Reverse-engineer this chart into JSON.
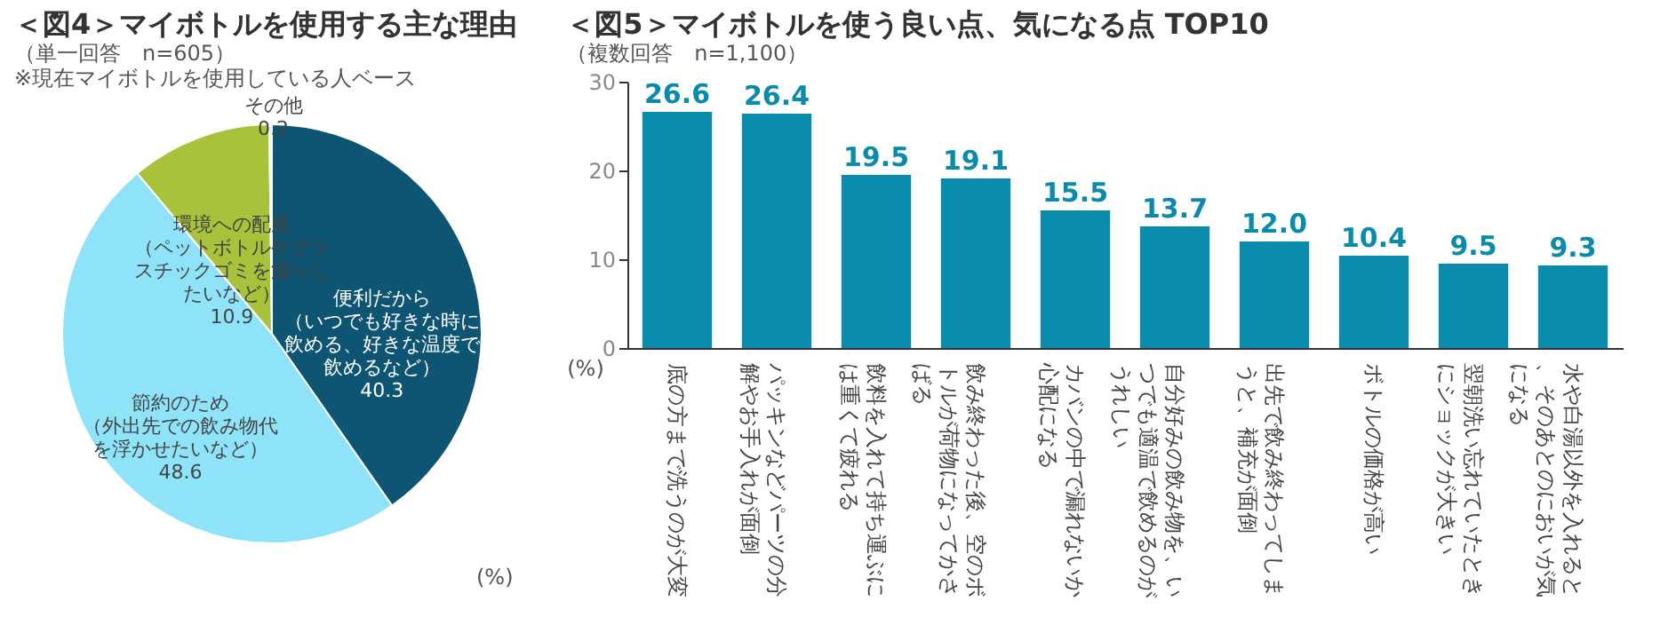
{
  "chart_data": [
    {
      "type": "pie",
      "title": "＜図4＞マイボトルを使用する主な理由",
      "subtitle": "（単一回答　n=605）",
      "annotations": [
        "※現在マイボトルを使用している人ベース",
        "(%)"
      ],
      "categories": [
        "便利だから（いつでも好きな時に飲める、好きな温度で飲めるなど）",
        "節約のため（外出先での飲み物代を浮かせたいなど）",
        "環境への配慮（ペットボトルやプラスチックゴミを減らしたいなど）",
        "その他"
      ],
      "values": [
        40.3,
        48.6,
        10.9,
        0.2
      ],
      "colors": [
        "#0e5573",
        "#8fe3f9",
        "#a8c23c",
        "#e8e8e8"
      ],
      "data_labels": true
    },
    {
      "type": "bar",
      "title": "＜図5＞マイボトルを使う良い点、気になる点 TOP10",
      "subtitle": "（複数回答　n=1,100）",
      "ylabel": "(%)",
      "categories": [
        "底の方まで洗うのが大変",
        "パッキンなどパーツの分解やお手入れが面倒",
        "飲料を入れて持ち運ぶには重くて疲れる",
        "飲み終わった後、空のボトルが荷物になってかさばる",
        "カバンの中で漏れないか心配になる",
        "自分好みの飲み物を、いつでも適温で飲めるのがうれしい",
        "出先で飲み終わってしまうと、補充が面倒",
        "ボトルの価格が高い",
        "翌朝洗い忘れていたときにショックが大きい",
        "水や白湯以外を入れると、そのあとのにおいが気になる"
      ],
      "values": [
        26.6,
        26.4,
        19.5,
        19.1,
        15.5,
        13.7,
        12.0,
        10.4,
        9.5,
        9.3
      ],
      "color": "#0a8bae",
      "value_labels": [
        "26.6",
        "26.4",
        "19.5",
        "19.1",
        "15.5",
        "13.7",
        "12.0",
        "10.4",
        "9.5",
        "9.3"
      ],
      "ylim": [
        0,
        30
      ],
      "yticks": [
        0,
        10,
        20,
        30
      ],
      "grid": false
    }
  ]
}
